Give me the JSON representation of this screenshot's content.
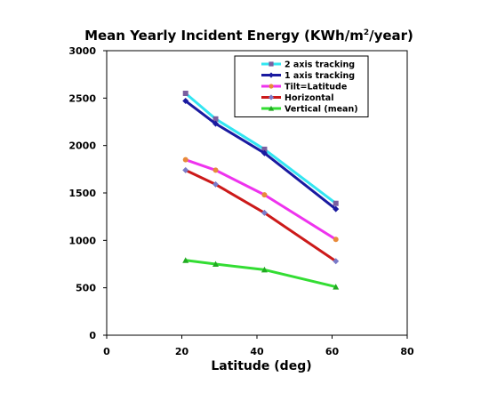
{
  "chart_data": {
    "type": "line",
    "title": "Mean Yearly Incident Energy (KWh/m",
    "title_sup": "2",
    "title_end": "/year)",
    "xlabel": "Latitude (deg)",
    "ylabel": "",
    "xlim": [
      0,
      80
    ],
    "ylim": [
      0,
      3000
    ],
    "x_ticks": [
      "0",
      "20",
      "40",
      "60",
      "80"
    ],
    "y_ticks": [
      "0",
      "500",
      "1000",
      "1500",
      "2000",
      "2500",
      "3000"
    ],
    "grid": false,
    "legend_position": "top-right",
    "series": [
      {
        "name": "2 axis tracking",
        "color": "#33e6f2",
        "marker": "square",
        "marker_color": "#7a5fa0",
        "points": [
          [
            21,
            2550
          ],
          [
            29,
            2280
          ],
          [
            42,
            1960
          ],
          [
            61,
            1390
          ]
        ]
      },
      {
        "name": "1 axis tracking",
        "color": "#1a1aa0",
        "marker": "diamond",
        "marker_color": "#1a1aa0",
        "points": [
          [
            21,
            2470
          ],
          [
            29,
            2230
          ],
          [
            42,
            1920
          ],
          [
            61,
            1330
          ]
        ]
      },
      {
        "name": "Tilt=Latitude",
        "color": "#ee33ee",
        "marker": "circle",
        "marker_color": "#e88a3a",
        "points": [
          [
            21,
            1850
          ],
          [
            29,
            1740
          ],
          [
            42,
            1480
          ],
          [
            61,
            1010
          ]
        ]
      },
      {
        "name": "Horizontal",
        "color": "#cc1a1a",
        "marker": "diamond",
        "marker_color": "#7a7ac8",
        "points": [
          [
            21,
            1740
          ],
          [
            29,
            1590
          ],
          [
            42,
            1290
          ],
          [
            61,
            780
          ]
        ]
      },
      {
        "name": "Vertical (mean)",
        "color": "#33dd33",
        "marker": "triangle",
        "marker_color": "#22aa22",
        "points": [
          [
            21,
            790
          ],
          [
            29,
            750
          ],
          [
            42,
            690
          ],
          [
            61,
            510
          ]
        ]
      }
    ]
  }
}
